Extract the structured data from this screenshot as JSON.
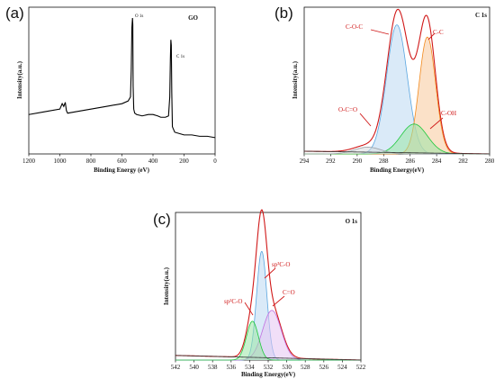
{
  "panel_labels": [
    "(a)",
    "(b)",
    "(c)"
  ],
  "chart_data": [
    {
      "type": "line",
      "panel": "(a)",
      "title": "GO",
      "xlabel": "Binding Energy (eV)",
      "ylabel": "Intensity(a.u.)",
      "xlim": [
        1200,
        0
      ],
      "x_ticks": [
        "1200",
        "1000",
        "800",
        "600",
        "400",
        "200",
        "0"
      ],
      "peak_labels": [
        "O 1s",
        "C 1s"
      ],
      "series": [
        {
          "color": "#000000",
          "x": [
            1200,
            1100,
            1000,
            985,
            975,
            965,
            958,
            950,
            900,
            800,
            700,
            600,
            560,
            545,
            540,
            536,
            532,
            530,
            528,
            524,
            518,
            505,
            470,
            430,
            400,
            370,
            350,
            320,
            300,
            292,
            288,
            285,
            282,
            279,
            275,
            260,
            230,
            200,
            150,
            100,
            50,
            0
          ],
          "y": [
            0.29,
            0.31,
            0.33,
            0.37,
            0.35,
            0.38,
            0.32,
            0.3,
            0.31,
            0.33,
            0.35,
            0.37,
            0.39,
            0.42,
            0.62,
            0.93,
            1.0,
            0.95,
            0.5,
            0.33,
            0.3,
            0.29,
            0.28,
            0.29,
            0.29,
            0.28,
            0.27,
            0.27,
            0.28,
            0.42,
            0.7,
            0.84,
            0.8,
            0.45,
            0.2,
            0.16,
            0.15,
            0.14,
            0.14,
            0.13,
            0.13,
            0.12
          ]
        }
      ]
    },
    {
      "type": "line",
      "panel": "(b)",
      "title": "C 1s",
      "xlabel": "Binding Energy(eV)",
      "ylabel": "Intensity(a.u.)",
      "xlim": [
        294,
        280
      ],
      "x_ticks": [
        "294",
        "292",
        "290",
        "288",
        "286",
        "284",
        "282",
        "280"
      ],
      "annotations": [
        "C-O-C",
        "C-C",
        "O-C=O",
        "C-OH"
      ],
      "series": [
        {
          "color": "#d01818",
          "peaks": [
            [
              287.0,
              0.95,
              0.78
            ],
            [
              284.7,
              0.86,
              0.62
            ],
            [
              285.7,
              0.22,
              1.0
            ],
            [
              289.2,
              0.05,
              1.0
            ]
          ],
          "baseline": [
            0.02,
            0.0
          ]
        },
        {
          "color": "#5aa6e0",
          "peaks": [
            [
              287.0,
              0.95,
              0.78
            ]
          ],
          "fill": "#bcd8f2"
        },
        {
          "color": "#f28a1e",
          "peaks": [
            [
              284.7,
              0.86,
              0.62
            ]
          ],
          "fill": "#f7c99a"
        },
        {
          "color": "#1ec83c",
          "peaks": [
            [
              285.7,
              0.22,
              1.0
            ]
          ],
          "fill": "#9be6a6"
        },
        {
          "color": "#9aa0a6",
          "peaks": [
            [
              289.2,
              0.05,
              1.0
            ]
          ],
          "fill": "#d7dadd"
        },
        {
          "color": "#333333",
          "baseline_only": [
            0.02,
            0.0
          ]
        }
      ]
    },
    {
      "type": "line",
      "panel": "(c)",
      "title": "O 1s",
      "xlabel": "Binding Energy(eV)",
      "ylabel": "Intensity(a.u.)",
      "xlim": [
        542,
        522
      ],
      "x_ticks": [
        "542",
        "540",
        "538",
        "536",
        "534",
        "532",
        "530",
        "528",
        "526",
        "524",
        "522"
      ],
      "annotations": [
        "sp²C-O",
        "sp³C-O",
        "C=O"
      ],
      "series": [
        {
          "color": "#d01818",
          "peaks": [
            [
              532.7,
              0.7,
              0.55
            ],
            [
              531.6,
              0.32,
              1.0
            ],
            [
              533.7,
              0.25,
              0.65
            ]
          ],
          "baseline": [
            0.03,
            0.0
          ]
        },
        {
          "color": "#5aa6e0",
          "peaks": [
            [
              532.7,
              0.7,
              0.55
            ]
          ],
          "fill": "#bcd8f2"
        },
        {
          "color": "#c070e0",
          "peaks": [
            [
              531.6,
              0.32,
              1.0
            ]
          ],
          "fill": "#e6c4f3"
        },
        {
          "color": "#1ec83c",
          "peaks": [
            [
              533.7,
              0.25,
              0.65
            ]
          ],
          "fill": "#9be6a6"
        },
        {
          "color": "#333333",
          "baseline_only": [
            0.03,
            0.0
          ]
        }
      ]
    }
  ]
}
